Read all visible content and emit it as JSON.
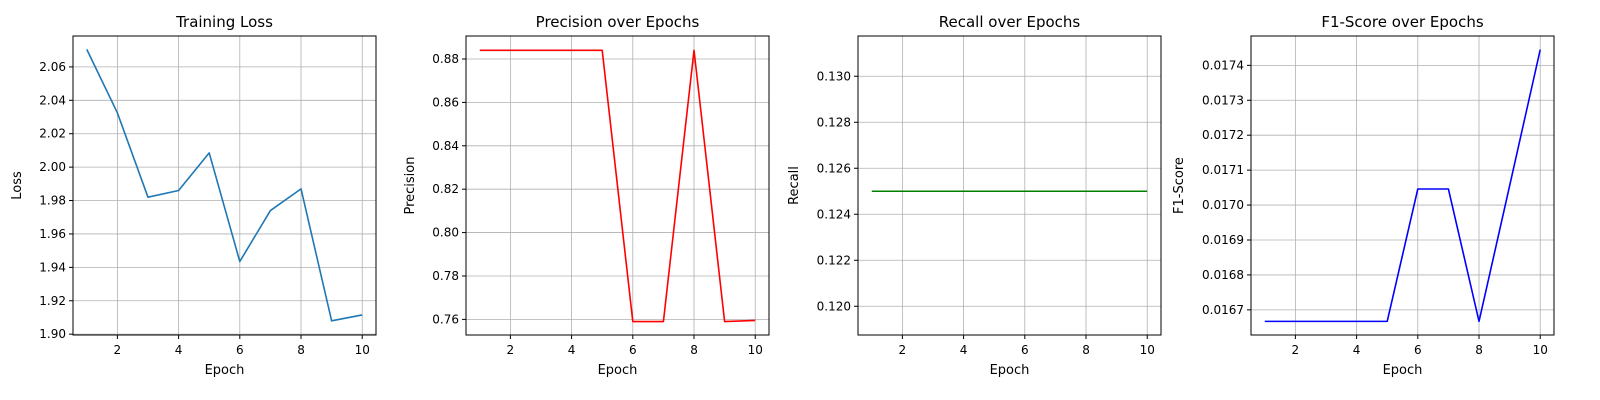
{
  "chart_data": [
    {
      "type": "line",
      "title": "Training Loss",
      "xlabel": "Epoch",
      "ylabel": "Loss",
      "x": [
        1,
        2,
        3,
        4,
        5,
        6,
        7,
        8,
        9,
        10
      ],
      "series": [
        {
          "values": [
            2.0705,
            2.0325,
            1.982,
            1.986,
            2.0085,
            1.9435,
            1.974,
            1.987,
            1.908,
            1.9115
          ],
          "color": "#1f77b4"
        }
      ],
      "xlim": [
        0.55,
        10.45
      ],
      "ylim": [
        1.8995,
        2.0785
      ],
      "xticks": [
        2,
        4,
        6,
        8,
        10
      ],
      "yticks": [
        1.9,
        1.92,
        1.94,
        1.96,
        1.98,
        2.0,
        2.02,
        2.04,
        2.06
      ],
      "ytick_labels": [
        "1.90",
        "1.92",
        "1.94",
        "1.96",
        "1.98",
        "2.00",
        "2.02",
        "2.04",
        "2.06"
      ],
      "grid": true
    },
    {
      "type": "line",
      "title": "Precision over Epochs",
      "xlabel": "Epoch",
      "ylabel": "Precision",
      "x": [
        1,
        2,
        3,
        4,
        5,
        6,
        7,
        8,
        9,
        10
      ],
      "series": [
        {
          "values": [
            0.884,
            0.884,
            0.884,
            0.884,
            0.884,
            0.759,
            0.759,
            0.884,
            0.759,
            0.7595
          ],
          "color": "#ff0000"
        }
      ],
      "xlim": [
        0.55,
        10.45
      ],
      "ylim": [
        0.7528,
        0.8906
      ],
      "xticks": [
        2,
        4,
        6,
        8,
        10
      ],
      "yticks": [
        0.76,
        0.78,
        0.8,
        0.82,
        0.84,
        0.86,
        0.88
      ],
      "ytick_labels": [
        "0.76",
        "0.78",
        "0.80",
        "0.82",
        "0.84",
        "0.86",
        "0.88"
      ],
      "grid": true
    },
    {
      "type": "line",
      "title": "Recall over Epochs",
      "xlabel": "Epoch",
      "ylabel": "Recall",
      "x": [
        1,
        2,
        3,
        4,
        5,
        6,
        7,
        8,
        9,
        10
      ],
      "series": [
        {
          "values": [
            0.125,
            0.125,
            0.125,
            0.125,
            0.125,
            0.125,
            0.125,
            0.125,
            0.125,
            0.125
          ],
          "color": "#008000"
        }
      ],
      "xlim": [
        0.55,
        10.45
      ],
      "ylim": [
        0.11875,
        0.13175
      ],
      "xticks": [
        2,
        4,
        6,
        8,
        10
      ],
      "yticks": [
        0.12,
        0.122,
        0.124,
        0.126,
        0.128,
        0.13
      ],
      "ytick_labels": [
        "0.120",
        "0.122",
        "0.124",
        "0.126",
        "0.128",
        "0.130"
      ],
      "grid": true
    },
    {
      "type": "line",
      "title": "F1-Score over Epochs",
      "xlabel": "Epoch",
      "ylabel": "F1-Score",
      "x": [
        1,
        2,
        3,
        4,
        5,
        6,
        7,
        8,
        9,
        10
      ],
      "series": [
        {
          "values": [
            0.016667,
            0.016667,
            0.016667,
            0.016667,
            0.016667,
            0.017046,
            0.017046,
            0.016667,
            0.017055,
            0.017445
          ],
          "color": "#0000ff"
        }
      ],
      "xlim": [
        0.55,
        10.45
      ],
      "ylim": [
        0.016628,
        0.017484
      ],
      "xticks": [
        2,
        4,
        6,
        8,
        10
      ],
      "yticks": [
        0.0167,
        0.0168,
        0.0169,
        0.017,
        0.0171,
        0.0172,
        0.0173,
        0.0174
      ],
      "ytick_labels": [
        "0.0167",
        "0.0168",
        "0.0169",
        "0.0170",
        "0.0171",
        "0.0172",
        "0.0173",
        "0.0174"
      ],
      "grid": true
    }
  ]
}
